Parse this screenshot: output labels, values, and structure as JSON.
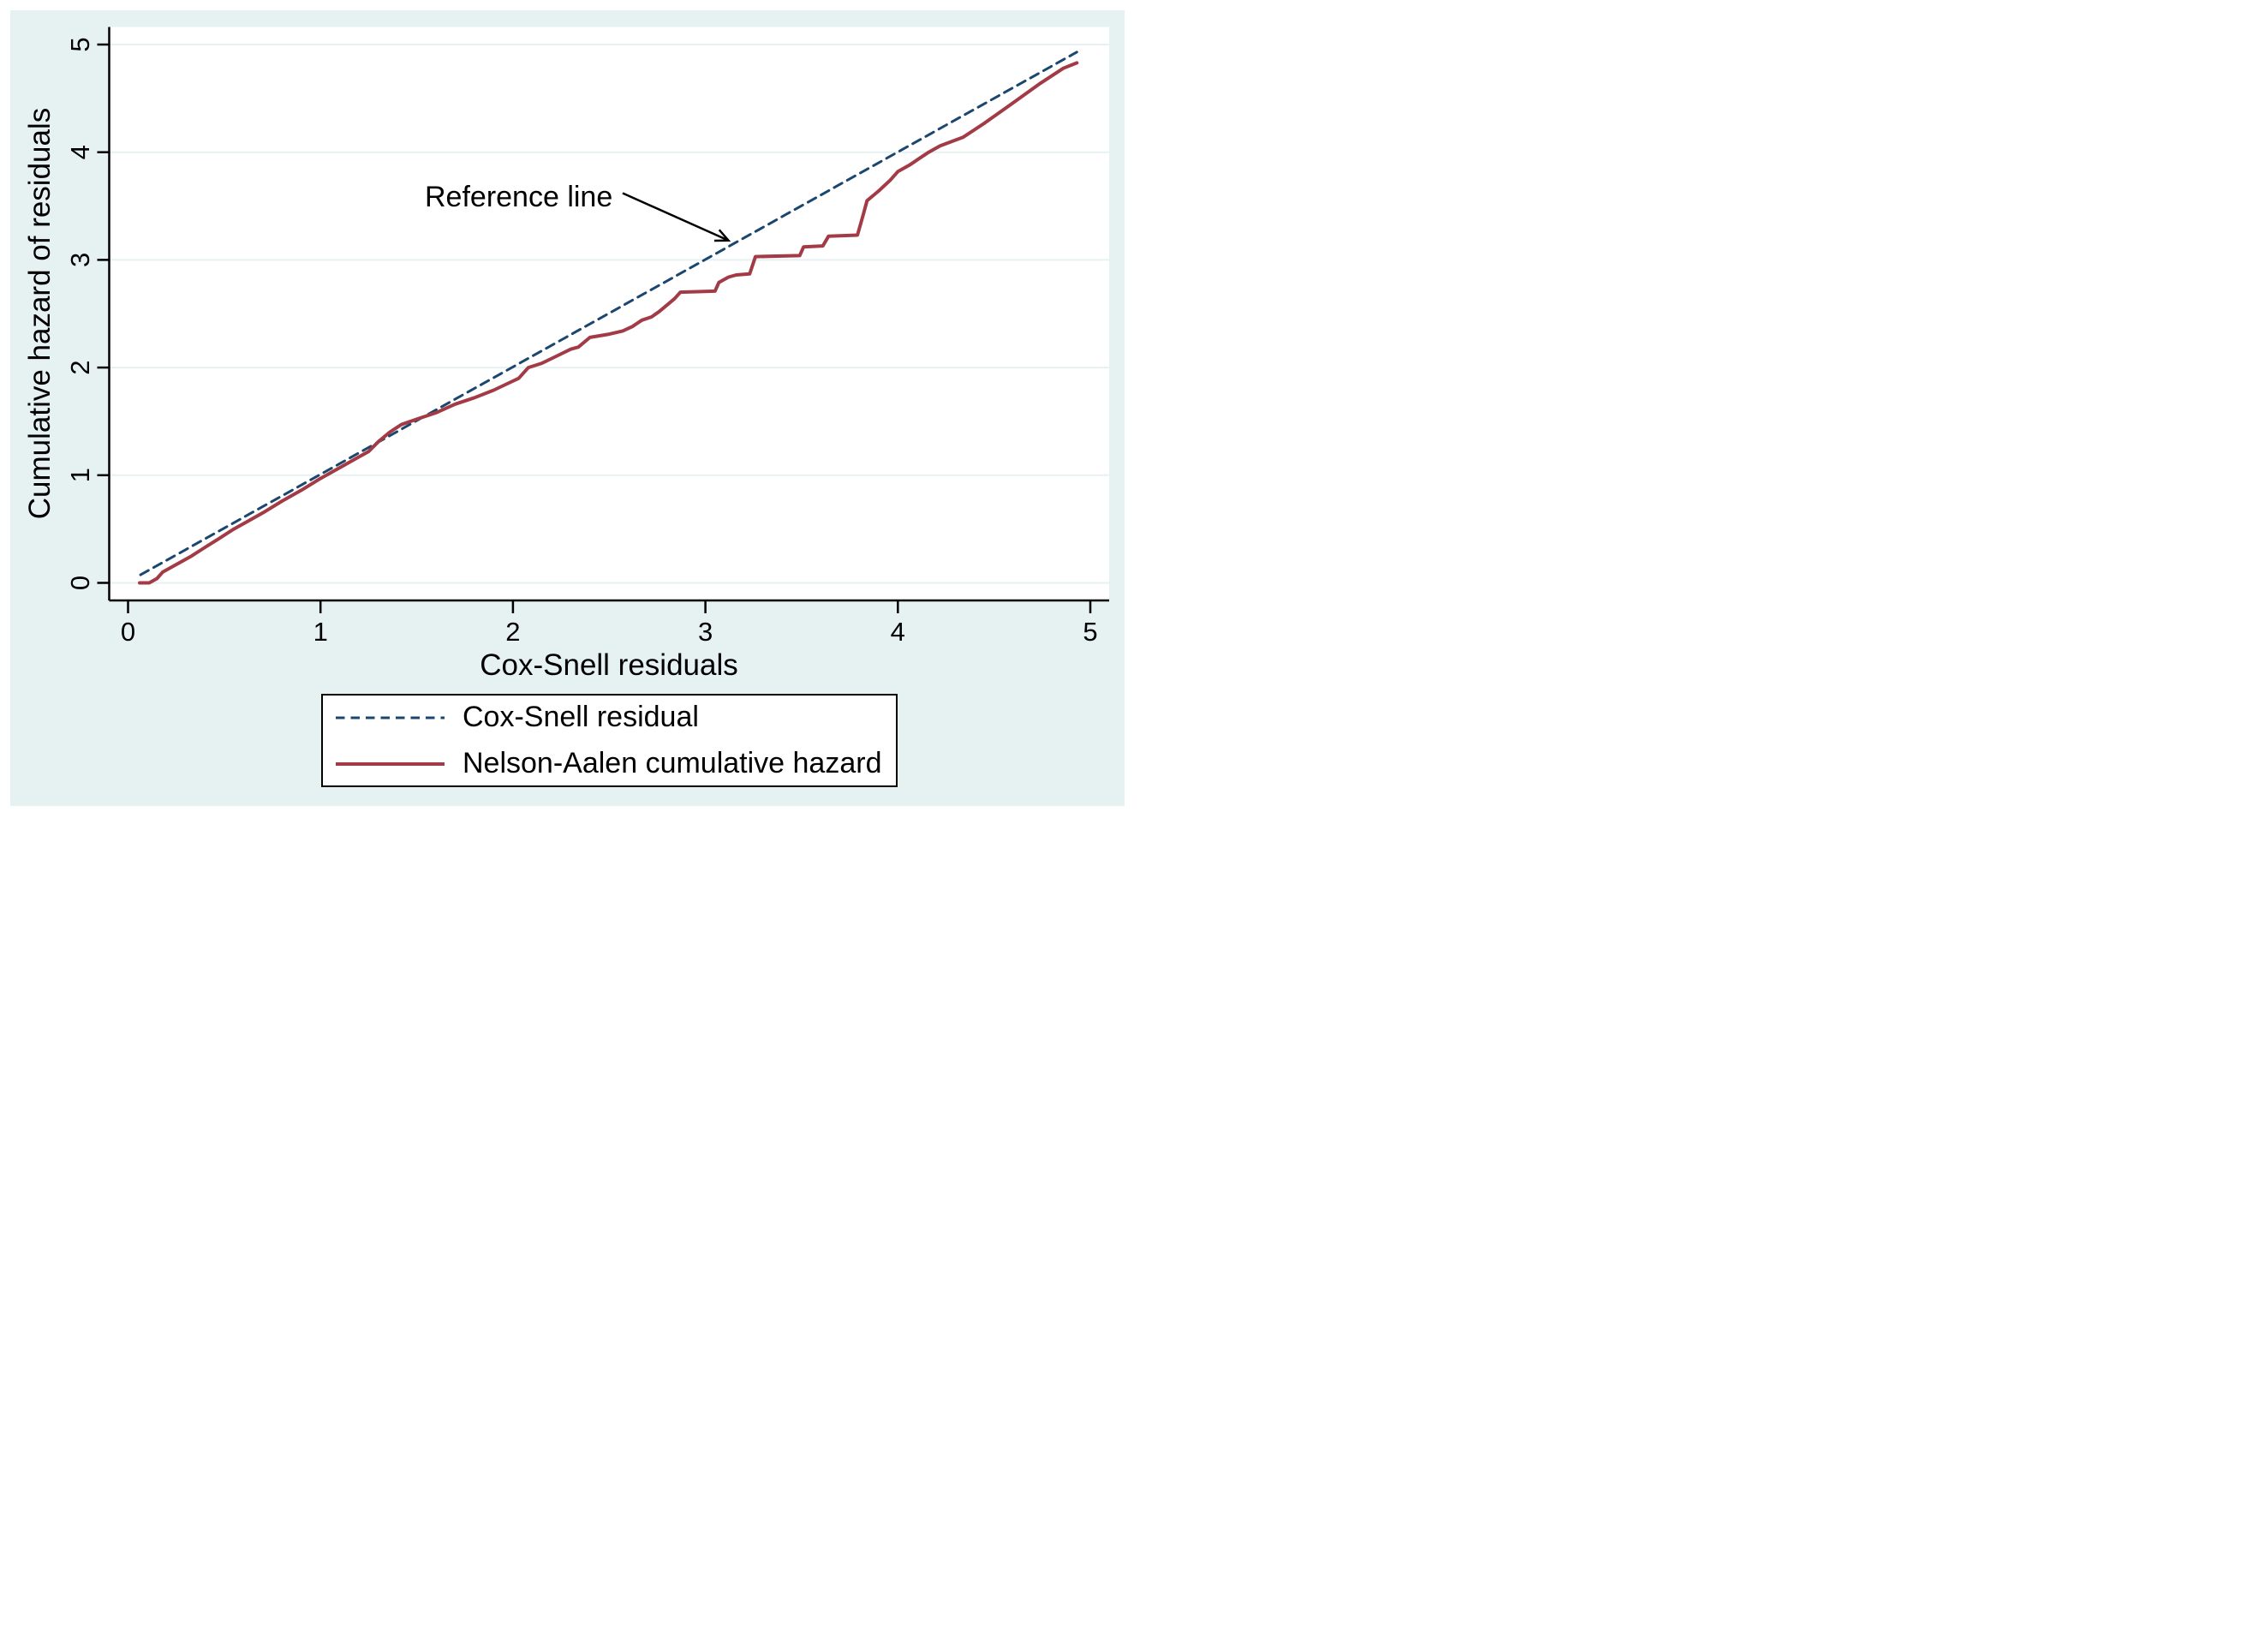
{
  "chart_data": {
    "type": "line",
    "title": "",
    "xlabel": "Cox-Snell residuals",
    "ylabel": "Cumulative hazard of residuals",
    "xlim": [
      0,
      5
    ],
    "ylim": [
      0,
      5
    ],
    "x_ticks": [
      0,
      1,
      2,
      3,
      4,
      5
    ],
    "y_ticks": [
      0,
      1,
      2,
      3,
      4,
      5
    ],
    "grid": "horizontal",
    "grid_color": "#E7F1F2",
    "background_color": "#E6F1F2",
    "axis_color": "#000000",
    "legend_position": "bottom-center",
    "annotation": {
      "text": "Reference line",
      "arrow_from": [
        2.57,
        3.62
      ],
      "arrow_to": [
        3.12,
        3.18
      ]
    },
    "series": [
      {
        "id": "cox-snell-reference",
        "name": "Cox-Snell residual",
        "style": "dashed",
        "color": "#1B476F",
        "points": [
          [
            0.065,
            0.075
          ],
          [
            4.93,
            4.93
          ]
        ]
      },
      {
        "id": "nelson-aalen",
        "name": "Nelson-Aalen cumulative hazard",
        "style": "solid",
        "color": "#A33B46",
        "points": [
          [
            0.06,
            0.0
          ],
          [
            0.11,
            0.0
          ],
          [
            0.15,
            0.04
          ],
          [
            0.18,
            0.1
          ],
          [
            0.25,
            0.17
          ],
          [
            0.33,
            0.25
          ],
          [
            0.4,
            0.33
          ],
          [
            0.48,
            0.42
          ],
          [
            0.55,
            0.5
          ],
          [
            0.62,
            0.57
          ],
          [
            0.7,
            0.65
          ],
          [
            0.8,
            0.76
          ],
          [
            0.9,
            0.86
          ],
          [
            1.0,
            0.97
          ],
          [
            1.1,
            1.07
          ],
          [
            1.2,
            1.17
          ],
          [
            1.25,
            1.22
          ],
          [
            1.3,
            1.31
          ],
          [
            1.36,
            1.4
          ],
          [
            1.42,
            1.47
          ],
          [
            1.5,
            1.52
          ],
          [
            1.6,
            1.58
          ],
          [
            1.7,
            1.66
          ],
          [
            1.8,
            1.72
          ],
          [
            1.9,
            1.79
          ],
          [
            1.97,
            1.85
          ],
          [
            2.03,
            1.9
          ],
          [
            2.08,
            2.0
          ],
          [
            2.15,
            2.04
          ],
          [
            2.22,
            2.1
          ],
          [
            2.3,
            2.17
          ],
          [
            2.34,
            2.19
          ],
          [
            2.4,
            2.28
          ],
          [
            2.5,
            2.31
          ],
          [
            2.57,
            2.34
          ],
          [
            2.62,
            2.38
          ],
          [
            2.67,
            2.44
          ],
          [
            2.72,
            2.47
          ],
          [
            2.76,
            2.52
          ],
          [
            2.8,
            2.58
          ],
          [
            2.84,
            2.64
          ],
          [
            2.87,
            2.7
          ],
          [
            3.05,
            2.71
          ],
          [
            3.07,
            2.79
          ],
          [
            3.09,
            2.81
          ],
          [
            3.12,
            2.84
          ],
          [
            3.16,
            2.86
          ],
          [
            3.23,
            2.87
          ],
          [
            3.26,
            3.03
          ],
          [
            3.49,
            3.04
          ],
          [
            3.51,
            3.12
          ],
          [
            3.61,
            3.13
          ],
          [
            3.64,
            3.22
          ],
          [
            3.79,
            3.23
          ],
          [
            3.82,
            3.42
          ],
          [
            3.84,
            3.55
          ],
          [
            3.9,
            3.64
          ],
          [
            3.96,
            3.74
          ],
          [
            4.0,
            3.82
          ],
          [
            4.06,
            3.88
          ],
          [
            4.11,
            3.94
          ],
          [
            4.16,
            4.0
          ],
          [
            4.22,
            4.06
          ],
          [
            4.34,
            4.14
          ],
          [
            4.45,
            4.27
          ],
          [
            4.6,
            4.46
          ],
          [
            4.74,
            4.64
          ],
          [
            4.86,
            4.78
          ],
          [
            4.93,
            4.83
          ]
        ]
      }
    ]
  }
}
